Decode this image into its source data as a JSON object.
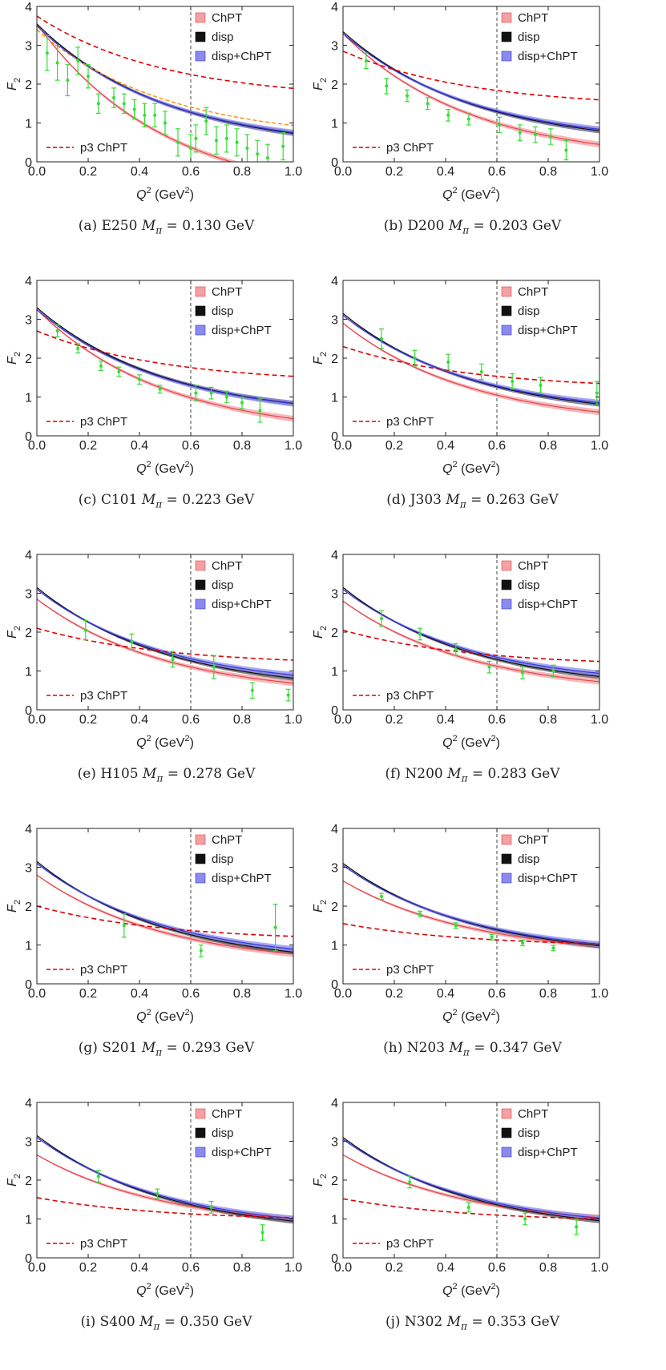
{
  "common": {
    "xlabel": "Q",
    "xlabel_sup": "2",
    "xlabel_unit": " (GeV",
    "xlabel_unit_sup": "2",
    "xlabel_close": ")",
    "ylabel": "F",
    "ylabel_sub": "2",
    "legend": [
      "ChPT",
      "disp",
      "disp+ChPT"
    ],
    "dashed_legend": "p3 ChPT",
    "colors": {
      "chpt": "#e8434a",
      "chpt_band": "#f4a0a4",
      "disp": "#111111",
      "disp_band": "#555555",
      "dispchpt": "#3535d6",
      "dispchpt_band": "#8a8aef",
      "p3": "#e00000",
      "data": "#33dd33"
    }
  },
  "chart_data": [
    {
      "label": "(a)",
      "ensemble": "E250",
      "mpi": "0.130",
      "unit": "GeV",
      "type": "line",
      "xlim": [
        0,
        1
      ],
      "ylim": [
        0,
        4
      ],
      "xticks": [
        "0.0",
        "0.2",
        "0.4",
        "0.6",
        "0.8",
        "1.0"
      ],
      "yticks": [
        "0",
        "1",
        "2",
        "3",
        "4"
      ],
      "vline": 0.6,
      "chpt": [
        3.55,
        -1.0
      ],
      "disp": [
        3.55,
        0.29
      ],
      "dispchpt": [
        3.5,
        0.32
      ],
      "p3": [
        3.75,
        1.6
      ],
      "orange": [
        3.4,
        0.55
      ],
      "points": [
        [
          0.04,
          2.8,
          0.45
        ],
        [
          0.08,
          2.55,
          0.45
        ],
        [
          0.12,
          2.1,
          0.4
        ],
        [
          0.16,
          2.6,
          0.35
        ],
        [
          0.2,
          2.2,
          0.3
        ],
        [
          0.24,
          1.5,
          0.25
        ],
        [
          0.3,
          1.65,
          0.25
        ],
        [
          0.34,
          1.5,
          0.25
        ],
        [
          0.38,
          1.35,
          0.25
        ],
        [
          0.42,
          1.2,
          0.3
        ],
        [
          0.46,
          1.2,
          0.3
        ],
        [
          0.5,
          1.0,
          0.3
        ],
        [
          0.55,
          0.5,
          0.35
        ],
        [
          0.6,
          0.35,
          0.35
        ],
        [
          0.62,
          0.6,
          0.35
        ],
        [
          0.66,
          1.05,
          0.35
        ],
        [
          0.7,
          0.55,
          0.35
        ],
        [
          0.74,
          0.6,
          0.35
        ],
        [
          0.78,
          0.5,
          0.35
        ],
        [
          0.82,
          0.35,
          0.35
        ],
        [
          0.86,
          0.2,
          0.35
        ],
        [
          0.9,
          0.1,
          0.35
        ],
        [
          0.96,
          0.4,
          0.35
        ]
      ]
    },
    {
      "label": "(b)",
      "ensemble": "D200",
      "mpi": "0.203",
      "unit": "GeV",
      "type": "line",
      "xlim": [
        0,
        1
      ],
      "ylim": [
        0,
        4
      ],
      "xticks": [
        "0.0",
        "0.2",
        "0.4",
        "0.6",
        "0.8",
        "1.0"
      ],
      "yticks": [
        "0",
        "1",
        "2",
        "3",
        "4"
      ],
      "vline": 0.6,
      "chpt": [
        3.3,
        0.0
      ],
      "disp": [
        3.35,
        0.4
      ],
      "dispchpt": [
        3.3,
        0.45
      ],
      "p3": [
        2.85,
        1.4
      ],
      "points": [
        [
          0.09,
          2.6,
          0.2
        ],
        [
          0.17,
          1.95,
          0.2
        ],
        [
          0.25,
          1.7,
          0.15
        ],
        [
          0.33,
          1.5,
          0.15
        ],
        [
          0.41,
          1.2,
          0.15
        ],
        [
          0.49,
          1.1,
          0.15
        ],
        [
          0.61,
          0.95,
          0.2
        ],
        [
          0.69,
          0.75,
          0.2
        ],
        [
          0.75,
          0.7,
          0.2
        ],
        [
          0.81,
          0.65,
          0.2
        ],
        [
          0.87,
          0.3,
          0.25
        ]
      ]
    },
    {
      "label": "(c)",
      "ensemble": "C101",
      "mpi": "0.223",
      "unit": "GeV",
      "type": "line",
      "xlim": [
        0,
        1
      ],
      "ylim": [
        0,
        4
      ],
      "xticks": [
        "0.0",
        "0.2",
        "0.4",
        "0.6",
        "0.8",
        "1.0"
      ],
      "yticks": [
        "0",
        "1",
        "2",
        "3",
        "4"
      ],
      "vline": 0.6,
      "chpt": [
        3.25,
        0.0
      ],
      "disp": [
        3.3,
        0.45
      ],
      "dispchpt": [
        3.25,
        0.45
      ],
      "p3": [
        2.7,
        1.35
      ],
      "points": [
        [
          0.08,
          2.7,
          0.15
        ],
        [
          0.16,
          2.25,
          0.12
        ],
        [
          0.25,
          1.8,
          0.12
        ],
        [
          0.32,
          1.65,
          0.12
        ],
        [
          0.4,
          1.45,
          0.12
        ],
        [
          0.48,
          1.2,
          0.1
        ],
        [
          0.62,
          1.1,
          0.2
        ],
        [
          0.68,
          1.1,
          0.15
        ],
        [
          0.74,
          1.0,
          0.15
        ],
        [
          0.8,
          0.85,
          0.15
        ],
        [
          0.87,
          0.65,
          0.3
        ]
      ]
    },
    {
      "label": "(d)",
      "ensemble": "J303",
      "mpi": "0.263",
      "unit": "GeV",
      "type": "line",
      "xlim": [
        0,
        1
      ],
      "ylim": [
        0,
        4
      ],
      "xticks": [
        "0.0",
        "0.2",
        "0.4",
        "0.6",
        "0.8",
        "1.0"
      ],
      "yticks": [
        "0",
        "1",
        "2",
        "3",
        "4"
      ],
      "vline": 0.6,
      "chpt": [
        2.9,
        0.25
      ],
      "disp": [
        3.15,
        0.45
      ],
      "dispchpt": [
        3.1,
        0.5
      ],
      "p3": [
        2.3,
        1.2
      ],
      "points": [
        [
          0.15,
          2.5,
          0.25
        ],
        [
          0.28,
          2.0,
          0.2
        ],
        [
          0.41,
          1.9,
          0.2
        ],
        [
          0.54,
          1.65,
          0.2
        ],
        [
          0.66,
          1.4,
          0.2
        ],
        [
          0.77,
          1.3,
          0.2
        ],
        [
          0.99,
          1.1,
          0.3
        ]
      ]
    },
    {
      "label": "(e)",
      "ensemble": "H105",
      "mpi": "0.278",
      "unit": "GeV",
      "type": "line",
      "xlim": [
        0,
        1
      ],
      "ylim": [
        0,
        4
      ],
      "xticks": [
        "0.0",
        "0.2",
        "0.4",
        "0.6",
        "0.8",
        "1.0"
      ],
      "yticks": [
        "0",
        "1",
        "2",
        "3",
        "4"
      ],
      "vline": 0.6,
      "chpt": [
        2.85,
        0.35
      ],
      "disp": [
        3.15,
        0.45
      ],
      "dispchpt": [
        3.1,
        0.55
      ],
      "p3": [
        2.1,
        1.15
      ],
      "points": [
        [
          0.19,
          2.05,
          0.25
        ],
        [
          0.37,
          1.75,
          0.2
        ],
        [
          0.53,
          1.3,
          0.2
        ],
        [
          0.69,
          1.1,
          0.3
        ],
        [
          0.84,
          0.5,
          0.2
        ],
        [
          0.98,
          0.38,
          0.15
        ]
      ]
    },
    {
      "label": "(f)",
      "ensemble": "N200",
      "mpi": "0.283",
      "unit": "GeV",
      "type": "line",
      "xlim": [
        0,
        1
      ],
      "ylim": [
        0,
        4
      ],
      "xticks": [
        "0.0",
        "0.2",
        "0.4",
        "0.6",
        "0.8",
        "1.0"
      ],
      "yticks": [
        "0",
        "1",
        "2",
        "3",
        "4"
      ],
      "vline": 0.6,
      "chpt": [
        2.8,
        0.4
      ],
      "disp": [
        3.15,
        0.5
      ],
      "dispchpt": [
        3.1,
        0.6
      ],
      "p3": [
        2.05,
        1.12
      ],
      "points": [
        [
          0.15,
          2.35,
          0.2
        ],
        [
          0.3,
          1.95,
          0.15
        ],
        [
          0.44,
          1.55,
          0.15
        ],
        [
          0.57,
          1.1,
          0.15
        ],
        [
          0.7,
          0.95,
          0.15
        ],
        [
          0.82,
          1.0,
          0.15
        ]
      ]
    },
    {
      "label": "(g)",
      "ensemble": "S201",
      "mpi": "0.293",
      "unit": "GeV",
      "type": "line",
      "xlim": [
        0,
        1
      ],
      "ylim": [
        0,
        4
      ],
      "xticks": [
        "0.0",
        "0.2",
        "0.4",
        "0.6",
        "0.8",
        "1.0"
      ],
      "yticks": [
        "0",
        "1",
        "2",
        "3",
        "4"
      ],
      "vline": 0.6,
      "chpt": [
        2.8,
        0.45
      ],
      "disp": [
        3.15,
        0.45
      ],
      "dispchpt": [
        3.1,
        0.55
      ],
      "p3": [
        2.0,
        1.1
      ],
      "points": [
        [
          0.34,
          1.5,
          0.3
        ],
        [
          0.64,
          0.85,
          0.15
        ],
        [
          0.93,
          1.45,
          0.6
        ]
      ]
    },
    {
      "label": "(h)",
      "ensemble": "N203",
      "mpi": "0.347",
      "unit": "GeV",
      "type": "line",
      "xlim": [
        0,
        1
      ],
      "ylim": [
        0,
        4
      ],
      "xticks": [
        "0.0",
        "0.2",
        "0.4",
        "0.6",
        "0.8",
        "1.0"
      ],
      "yticks": [
        "0",
        "1",
        "2",
        "3",
        "4"
      ],
      "vline": 0.6,
      "chpt": [
        2.65,
        0.72
      ],
      "disp": [
        3.1,
        0.65
      ],
      "dispchpt": [
        3.05,
        0.7
      ],
      "p3": [
        1.55,
        0.95
      ],
      "points": [
        [
          0.15,
          2.25,
          0.08
        ],
        [
          0.3,
          1.8,
          0.07
        ],
        [
          0.44,
          1.5,
          0.07
        ],
        [
          0.58,
          1.2,
          0.07
        ],
        [
          0.7,
          1.05,
          0.07
        ],
        [
          0.82,
          0.92,
          0.07
        ]
      ]
    },
    {
      "label": "(i)",
      "ensemble": "S400",
      "mpi": "0.350",
      "unit": "GeV",
      "type": "line",
      "xlim": [
        0,
        1
      ],
      "ylim": [
        0,
        4
      ],
      "xticks": [
        "0.0",
        "0.2",
        "0.4",
        "0.6",
        "0.8",
        "1.0"
      ],
      "yticks": [
        "0",
        "1",
        "2",
        "3",
        "4"
      ],
      "vline": 0.6,
      "chpt": [
        2.65,
        0.75
      ],
      "disp": [
        3.15,
        0.6
      ],
      "dispchpt": [
        3.1,
        0.68
      ],
      "p3": [
        1.55,
        0.95
      ],
      "points": [
        [
          0.24,
          2.1,
          0.15
        ],
        [
          0.47,
          1.65,
          0.12
        ],
        [
          0.68,
          1.3,
          0.15
        ],
        [
          0.88,
          0.65,
          0.2
        ]
      ]
    },
    {
      "label": "(j)",
      "ensemble": "N302",
      "mpi": "0.353",
      "unit": "GeV",
      "type": "line",
      "xlim": [
        0,
        1
      ],
      "ylim": [
        0,
        4
      ],
      "xticks": [
        "0.0",
        "0.2",
        "0.4",
        "0.6",
        "0.8",
        "1.0"
      ],
      "yticks": [
        "0",
        "1",
        "2",
        "3",
        "4"
      ],
      "vline": 0.6,
      "chpt": [
        2.65,
        0.78
      ],
      "disp": [
        3.1,
        0.62
      ],
      "dispchpt": [
        3.05,
        0.7
      ],
      "p3": [
        1.52,
        0.92
      ],
      "points": [
        [
          0.26,
          1.95,
          0.15
        ],
        [
          0.49,
          1.3,
          0.12
        ],
        [
          0.71,
          1.0,
          0.15
        ],
        [
          0.91,
          0.8,
          0.2
        ]
      ]
    }
  ]
}
